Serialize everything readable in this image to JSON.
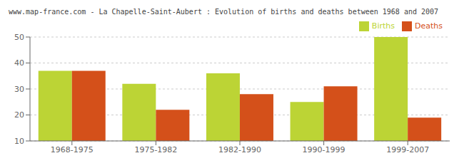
{
  "chart_data": {
    "type": "bar",
    "title": "www.map-france.com - La Chapelle-Saint-Aubert : Evolution of births and deaths between 1968 and 2007",
    "categories": [
      "1968-1975",
      "1975-1982",
      "1982-1990",
      "1990-1999",
      "1999-2007"
    ],
    "series": [
      {
        "name": "Births",
        "color": "#bcd435",
        "values": [
          37,
          32,
          36,
          25,
          50
        ]
      },
      {
        "name": "Deaths",
        "color": "#d4501a",
        "values": [
          37,
          22,
          28,
          31,
          19
        ]
      }
    ],
    "ylim": [
      10,
      50
    ],
    "yticks": [
      10,
      20,
      30,
      40,
      50
    ],
    "grid": true,
    "legend": "upper right"
  }
}
